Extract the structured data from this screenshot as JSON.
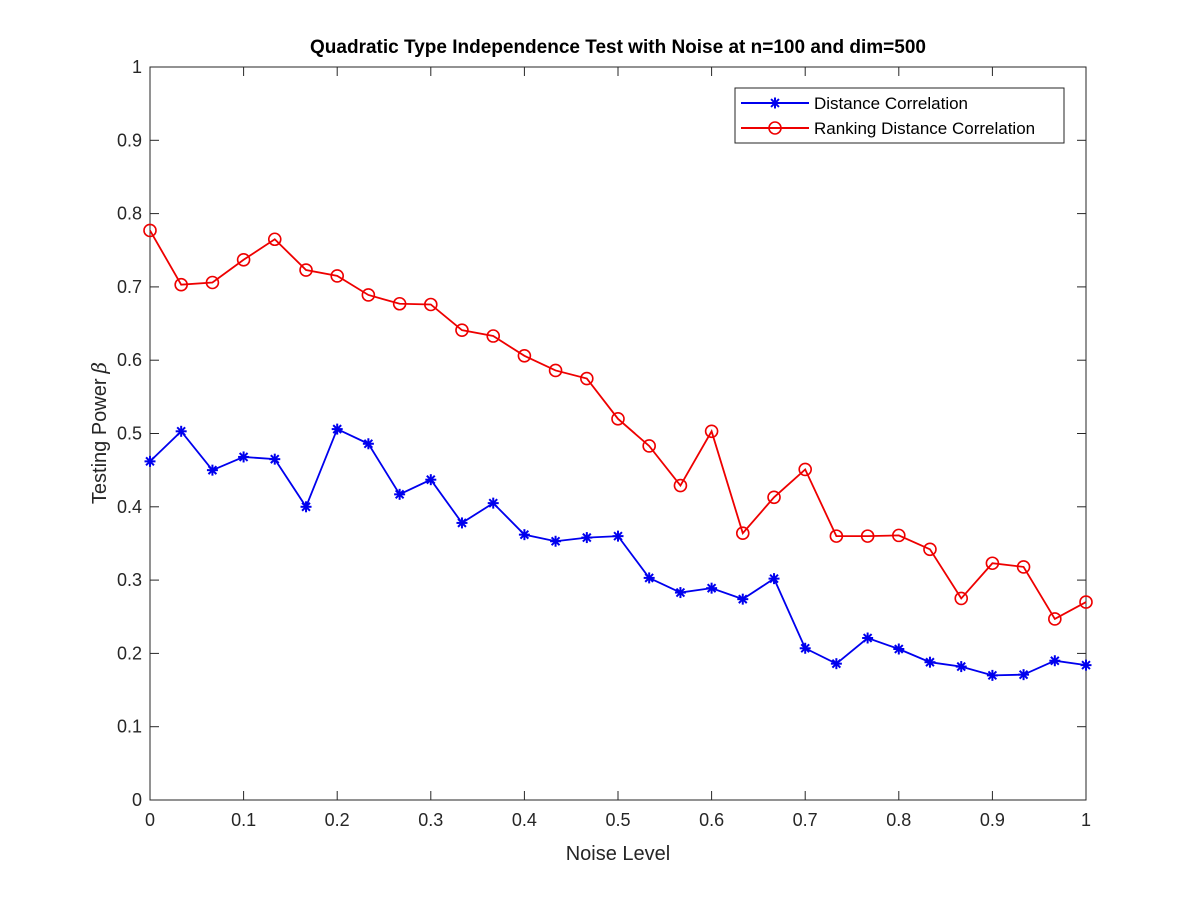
{
  "chart_data": {
    "type": "line",
    "title": "Quadratic Type Independence Test with Noise at n=100 and dim=500",
    "xlabel": "Noise Level",
    "ylabel": "Testing Power",
    "ylabel_symbol": "β",
    "xlim": [
      0,
      1
    ],
    "ylim": [
      0,
      1
    ],
    "xticks": [
      "0",
      "0.1",
      "0.2",
      "0.3",
      "0.4",
      "0.5",
      "0.6",
      "0.7",
      "0.8",
      "0.9",
      "1"
    ],
    "yticks": [
      "0",
      "0.1",
      "0.2",
      "0.3",
      "0.4",
      "0.5",
      "0.6",
      "0.7",
      "0.8",
      "0.9",
      "1"
    ],
    "grid": false,
    "legend_position": "top-right",
    "x": [
      0,
      0.0333,
      0.0667,
      0.1,
      0.1333,
      0.1667,
      0.2,
      0.2333,
      0.2667,
      0.3,
      0.3333,
      0.3667,
      0.4,
      0.4333,
      0.4667,
      0.5,
      0.5333,
      0.5667,
      0.6,
      0.6333,
      0.6667,
      0.7,
      0.7333,
      0.7667,
      0.8,
      0.8333,
      0.8667,
      0.9,
      0.9333,
      0.9667,
      1
    ],
    "series": [
      {
        "name": "Distance Correlation",
        "color": "#0000ee",
        "marker": "asterisk",
        "values": [
          0.462,
          0.503,
          0.45,
          0.468,
          0.465,
          0.4,
          0.506,
          0.486,
          0.417,
          0.437,
          0.378,
          0.405,
          0.362,
          0.353,
          0.358,
          0.36,
          0.303,
          0.283,
          0.289,
          0.274,
          0.302,
          0.207,
          0.186,
          0.221,
          0.206,
          0.188,
          0.182,
          0.17,
          0.171,
          0.19,
          0.184
        ]
      },
      {
        "name": "Ranking Distance Correlation",
        "color": "#ee0000",
        "marker": "circle",
        "values": [
          0.777,
          0.703,
          0.706,
          0.737,
          0.765,
          0.723,
          0.715,
          0.689,
          0.677,
          0.676,
          0.641,
          0.633,
          0.606,
          0.586,
          0.575,
          0.52,
          0.483,
          0.429,
          0.503,
          0.364,
          0.413,
          0.451,
          0.36,
          0.36,
          0.361,
          0.342,
          0.275,
          0.323,
          0.318,
          0.247,
          0.27
        ]
      }
    ]
  }
}
